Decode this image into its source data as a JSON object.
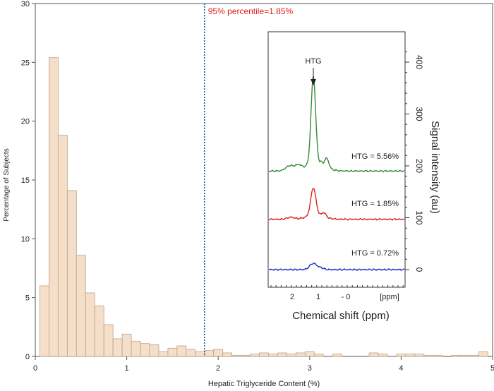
{
  "chart_data": [
    {
      "type": "bar",
      "xlabel": "Hepatic Triglyceride Content  (%)",
      "ylabel": "Percentage of Subjects",
      "xlim": [
        0,
        5
      ],
      "ylim": [
        0,
        30
      ],
      "x_ticks": [
        0,
        1,
        2,
        3,
        4,
        5
      ],
      "y_ticks": [
        0,
        5,
        10,
        15,
        20,
        25,
        30
      ],
      "bin_width": 0.1,
      "bin_starts": [
        0.05,
        0.15,
        0.25,
        0.35,
        0.45,
        0.55,
        0.65,
        0.75,
        0.85,
        0.95,
        1.05,
        1.15,
        1.25,
        1.35,
        1.45,
        1.55,
        1.65,
        1.75,
        1.85,
        1.95,
        2.05,
        2.15,
        2.25,
        2.35,
        2.45,
        2.55,
        2.65,
        2.75,
        2.85,
        2.95,
        3.05,
        3.15,
        3.25,
        3.35,
        3.45,
        3.55,
        3.65,
        3.75,
        3.85,
        3.95,
        4.05,
        4.15,
        4.25,
        4.35,
        4.45,
        4.55,
        4.65,
        4.75,
        4.85
      ],
      "values": [
        6.0,
        25.4,
        18.8,
        14.1,
        8.6,
        5.4,
        4.3,
        2.7,
        1.5,
        1.9,
        1.3,
        1.1,
        1.0,
        0.4,
        0.7,
        0.9,
        0.6,
        0.4,
        0.5,
        0.6,
        0.3,
        0.1,
        0.1,
        0.2,
        0.3,
        0.2,
        0.3,
        0.2,
        0.3,
        0.4,
        0.2,
        0.0,
        0.2,
        0.0,
        0.0,
        0.0,
        0.3,
        0.2,
        0.0,
        0.2,
        0.2,
        0.2,
        0.1,
        0.1,
        0.0,
        0.1,
        0.1,
        0.1,
        0.4
      ],
      "bar_color": "#f5dfc8",
      "bar_edge_color": "#b9a28d",
      "reference_line": {
        "x": 1.85,
        "label": "95% percentile=1.85%",
        "color": "#1f5fa8",
        "label_color": "#e02020"
      },
      "grid": false
    },
    {
      "type": "line",
      "title": "",
      "xlabel": "Chemical shift (ppm)",
      "ylabel": "Signal intensity (au)",
      "x_ticks": [
        "2",
        "1",
        "- 0",
        "[ppm]"
      ],
      "y_ticks": [
        0,
        100,
        200,
        300,
        400
      ],
      "peak_label": "HTG",
      "series": [
        {
          "name": "HTG = 5.56%",
          "color": "#3a8a3a",
          "baseline": 190,
          "peak": 360
        },
        {
          "name": "HTG = 1.85%",
          "color": "#e02020",
          "baseline": 97,
          "peak": 150
        },
        {
          "name": "HTG = 0.72%",
          "color": "#1f2fc8",
          "baseline": 0,
          "peak": 14
        }
      ]
    }
  ]
}
